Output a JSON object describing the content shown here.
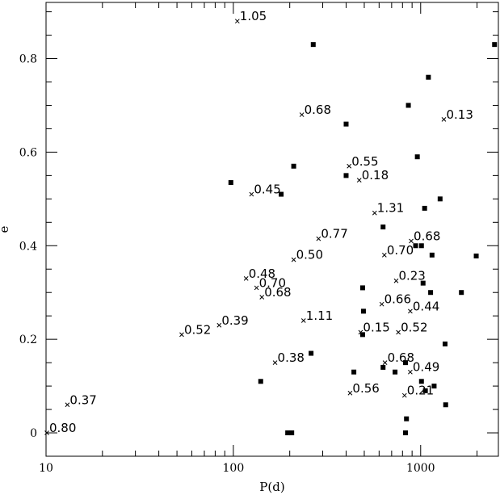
{
  "chart_data": {
    "type": "scatter",
    "title": "",
    "xlabel": "P(d)",
    "ylabel": "e",
    "xscale": "log",
    "xlim": [
      10,
      2600
    ],
    "ylim": [
      -0.05,
      0.92
    ],
    "grid": false,
    "legend": "none",
    "xticks": [
      {
        "value": 10,
        "label": "10"
      },
      {
        "value": 100,
        "label": "100"
      },
      {
        "value": 1000,
        "label": "1000"
      }
    ],
    "yticks": [
      {
        "value": 0,
        "label": "0"
      },
      {
        "value": 0.2,
        "label": "0.2"
      },
      {
        "value": 0.4,
        "label": "0.4"
      },
      {
        "value": 0.6,
        "label": "0.6"
      },
      {
        "value": 0.8,
        "label": "0.8"
      }
    ],
    "series": [
      {
        "marker": "square",
        "points": [
          {
            "x": 267,
            "y": 0.83
          },
          {
            "x": 2480,
            "y": 0.83
          },
          {
            "x": 1100,
            "y": 0.76
          },
          {
            "x": 860,
            "y": 0.7
          },
          {
            "x": 400,
            "y": 0.66
          },
          {
            "x": 960,
            "y": 0.59
          },
          {
            "x": 210,
            "y": 0.57
          },
          {
            "x": 97,
            "y": 0.535
          },
          {
            "x": 400,
            "y": 0.55
          },
          {
            "x": 180,
            "y": 0.51
          },
          {
            "x": 1270,
            "y": 0.5
          },
          {
            "x": 1050,
            "y": 0.48
          },
          {
            "x": 630,
            "y": 0.44
          },
          {
            "x": 1010,
            "y": 0.4
          },
          {
            "x": 940,
            "y": 0.4
          },
          {
            "x": 1150,
            "y": 0.38
          },
          {
            "x": 1980,
            "y": 0.378
          },
          {
            "x": 1030,
            "y": 0.32
          },
          {
            "x": 1650,
            "y": 0.3
          },
          {
            "x": 1130,
            "y": 0.3
          },
          {
            "x": 490,
            "y": 0.31
          },
          {
            "x": 495,
            "y": 0.26
          },
          {
            "x": 490,
            "y": 0.21
          },
          {
            "x": 1350,
            "y": 0.19
          },
          {
            "x": 260,
            "y": 0.17
          },
          {
            "x": 830,
            "y": 0.15
          },
          {
            "x": 630,
            "y": 0.14
          },
          {
            "x": 440,
            "y": 0.13
          },
          {
            "x": 730,
            "y": 0.13
          },
          {
            "x": 140,
            "y": 0.11
          },
          {
            "x": 1010,
            "y": 0.11
          },
          {
            "x": 1180,
            "y": 0.1
          },
          {
            "x": 1060,
            "y": 0.09
          },
          {
            "x": 1360,
            "y": 0.06
          },
          {
            "x": 840,
            "y": 0.03
          },
          {
            "x": 830,
            "y": 0.0
          },
          {
            "x": 195,
            "y": 0.0
          },
          {
            "x": 205,
            "y": 0.0
          }
        ]
      },
      {
        "marker": "cross",
        "points": [
          {
            "x": 105,
            "y": 0.88,
            "label": "1.05"
          },
          {
            "x": 232,
            "y": 0.68,
            "label": "0.68"
          },
          {
            "x": 1330,
            "y": 0.67,
            "label": "0.13"
          },
          {
            "x": 415,
            "y": 0.57,
            "label": "0.55"
          },
          {
            "x": 470,
            "y": 0.54,
            "label": "0.18"
          },
          {
            "x": 125,
            "y": 0.51,
            "label": "0.45"
          },
          {
            "x": 568,
            "y": 0.47,
            "label": "1.31"
          },
          {
            "x": 285,
            "y": 0.415,
            "label": "0.77"
          },
          {
            "x": 890,
            "y": 0.41,
            "label": "0.68"
          },
          {
            "x": 640,
            "y": 0.38,
            "label": "0.70"
          },
          {
            "x": 210,
            "y": 0.37,
            "label": "0.50"
          },
          {
            "x": 117,
            "y": 0.33,
            "label": "0.48"
          },
          {
            "x": 740,
            "y": 0.325,
            "label": "0.23"
          },
          {
            "x": 133,
            "y": 0.31,
            "label": "0.70"
          },
          {
            "x": 142,
            "y": 0.29,
            "label": "0.68"
          },
          {
            "x": 620,
            "y": 0.275,
            "label": "0.66"
          },
          {
            "x": 880,
            "y": 0.26,
            "label": "0.44"
          },
          {
            "x": 237,
            "y": 0.24,
            "label": "1.11"
          },
          {
            "x": 84,
            "y": 0.23,
            "label": "0.39"
          },
          {
            "x": 53,
            "y": 0.21,
            "label": "0.52"
          },
          {
            "x": 478,
            "y": 0.215,
            "label": "0.15"
          },
          {
            "x": 760,
            "y": 0.215,
            "label": "0.52"
          },
          {
            "x": 167,
            "y": 0.15,
            "label": "0.38"
          },
          {
            "x": 645,
            "y": 0.15,
            "label": "0.68"
          },
          {
            "x": 880,
            "y": 0.13,
            "label": "0.49"
          },
          {
            "x": 420,
            "y": 0.085,
            "label": "0.56"
          },
          {
            "x": 820,
            "y": 0.08,
            "label": "0.21"
          },
          {
            "x": 13,
            "y": 0.06,
            "label": "0.37"
          },
          {
            "x": 10.1,
            "y": 0.0,
            "label": "0.80"
          }
        ]
      }
    ]
  }
}
